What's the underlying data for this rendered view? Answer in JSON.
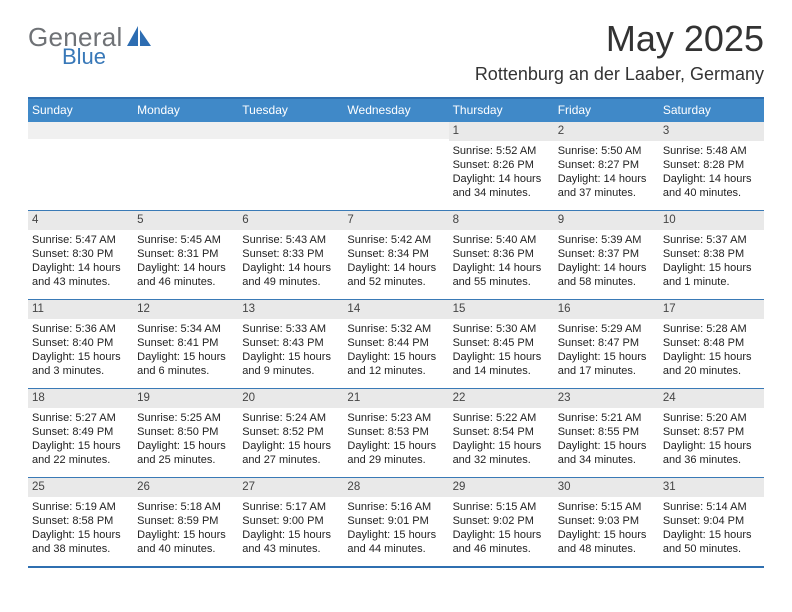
{
  "logo": {
    "text_general": "General",
    "text_blue": "Blue",
    "tri_color": "#2d6db2"
  },
  "title": "May 2025",
  "location": "Rottenburg an der Laaber, Germany",
  "header_bg": "#4089c8",
  "border_color": "#3a7ab6",
  "daynum_bg": "#e9e9e9",
  "weekdays": [
    "Sunday",
    "Monday",
    "Tuesday",
    "Wednesday",
    "Thursday",
    "Friday",
    "Saturday"
  ],
  "weeks": [
    [
      null,
      null,
      null,
      null,
      {
        "n": "1",
        "sr": "Sunrise: 5:52 AM",
        "ss": "Sunset: 8:26 PM",
        "dl": "Daylight: 14 hours and 34 minutes."
      },
      {
        "n": "2",
        "sr": "Sunrise: 5:50 AM",
        "ss": "Sunset: 8:27 PM",
        "dl": "Daylight: 14 hours and 37 minutes."
      },
      {
        "n": "3",
        "sr": "Sunrise: 5:48 AM",
        "ss": "Sunset: 8:28 PM",
        "dl": "Daylight: 14 hours and 40 minutes."
      }
    ],
    [
      {
        "n": "4",
        "sr": "Sunrise: 5:47 AM",
        "ss": "Sunset: 8:30 PM",
        "dl": "Daylight: 14 hours and 43 minutes."
      },
      {
        "n": "5",
        "sr": "Sunrise: 5:45 AM",
        "ss": "Sunset: 8:31 PM",
        "dl": "Daylight: 14 hours and 46 minutes."
      },
      {
        "n": "6",
        "sr": "Sunrise: 5:43 AM",
        "ss": "Sunset: 8:33 PM",
        "dl": "Daylight: 14 hours and 49 minutes."
      },
      {
        "n": "7",
        "sr": "Sunrise: 5:42 AM",
        "ss": "Sunset: 8:34 PM",
        "dl": "Daylight: 14 hours and 52 minutes."
      },
      {
        "n": "8",
        "sr": "Sunrise: 5:40 AM",
        "ss": "Sunset: 8:36 PM",
        "dl": "Daylight: 14 hours and 55 minutes."
      },
      {
        "n": "9",
        "sr": "Sunrise: 5:39 AM",
        "ss": "Sunset: 8:37 PM",
        "dl": "Daylight: 14 hours and 58 minutes."
      },
      {
        "n": "10",
        "sr": "Sunrise: 5:37 AM",
        "ss": "Sunset: 8:38 PM",
        "dl": "Daylight: 15 hours and 1 minute."
      }
    ],
    [
      {
        "n": "11",
        "sr": "Sunrise: 5:36 AM",
        "ss": "Sunset: 8:40 PM",
        "dl": "Daylight: 15 hours and 3 minutes."
      },
      {
        "n": "12",
        "sr": "Sunrise: 5:34 AM",
        "ss": "Sunset: 8:41 PM",
        "dl": "Daylight: 15 hours and 6 minutes."
      },
      {
        "n": "13",
        "sr": "Sunrise: 5:33 AM",
        "ss": "Sunset: 8:43 PM",
        "dl": "Daylight: 15 hours and 9 minutes."
      },
      {
        "n": "14",
        "sr": "Sunrise: 5:32 AM",
        "ss": "Sunset: 8:44 PM",
        "dl": "Daylight: 15 hours and 12 minutes."
      },
      {
        "n": "15",
        "sr": "Sunrise: 5:30 AM",
        "ss": "Sunset: 8:45 PM",
        "dl": "Daylight: 15 hours and 14 minutes."
      },
      {
        "n": "16",
        "sr": "Sunrise: 5:29 AM",
        "ss": "Sunset: 8:47 PM",
        "dl": "Daylight: 15 hours and 17 minutes."
      },
      {
        "n": "17",
        "sr": "Sunrise: 5:28 AM",
        "ss": "Sunset: 8:48 PM",
        "dl": "Daylight: 15 hours and 20 minutes."
      }
    ],
    [
      {
        "n": "18",
        "sr": "Sunrise: 5:27 AM",
        "ss": "Sunset: 8:49 PM",
        "dl": "Daylight: 15 hours and 22 minutes."
      },
      {
        "n": "19",
        "sr": "Sunrise: 5:25 AM",
        "ss": "Sunset: 8:50 PM",
        "dl": "Daylight: 15 hours and 25 minutes."
      },
      {
        "n": "20",
        "sr": "Sunrise: 5:24 AM",
        "ss": "Sunset: 8:52 PM",
        "dl": "Daylight: 15 hours and 27 minutes."
      },
      {
        "n": "21",
        "sr": "Sunrise: 5:23 AM",
        "ss": "Sunset: 8:53 PM",
        "dl": "Daylight: 15 hours and 29 minutes."
      },
      {
        "n": "22",
        "sr": "Sunrise: 5:22 AM",
        "ss": "Sunset: 8:54 PM",
        "dl": "Daylight: 15 hours and 32 minutes."
      },
      {
        "n": "23",
        "sr": "Sunrise: 5:21 AM",
        "ss": "Sunset: 8:55 PM",
        "dl": "Daylight: 15 hours and 34 minutes."
      },
      {
        "n": "24",
        "sr": "Sunrise: 5:20 AM",
        "ss": "Sunset: 8:57 PM",
        "dl": "Daylight: 15 hours and 36 minutes."
      }
    ],
    [
      {
        "n": "25",
        "sr": "Sunrise: 5:19 AM",
        "ss": "Sunset: 8:58 PM",
        "dl": "Daylight: 15 hours and 38 minutes."
      },
      {
        "n": "26",
        "sr": "Sunrise: 5:18 AM",
        "ss": "Sunset: 8:59 PM",
        "dl": "Daylight: 15 hours and 40 minutes."
      },
      {
        "n": "27",
        "sr": "Sunrise: 5:17 AM",
        "ss": "Sunset: 9:00 PM",
        "dl": "Daylight: 15 hours and 43 minutes."
      },
      {
        "n": "28",
        "sr": "Sunrise: 5:16 AM",
        "ss": "Sunset: 9:01 PM",
        "dl": "Daylight: 15 hours and 44 minutes."
      },
      {
        "n": "29",
        "sr": "Sunrise: 5:15 AM",
        "ss": "Sunset: 9:02 PM",
        "dl": "Daylight: 15 hours and 46 minutes."
      },
      {
        "n": "30",
        "sr": "Sunrise: 5:15 AM",
        "ss": "Sunset: 9:03 PM",
        "dl": "Daylight: 15 hours and 48 minutes."
      },
      {
        "n": "31",
        "sr": "Sunrise: 5:14 AM",
        "ss": "Sunset: 9:04 PM",
        "dl": "Daylight: 15 hours and 50 minutes."
      }
    ]
  ]
}
